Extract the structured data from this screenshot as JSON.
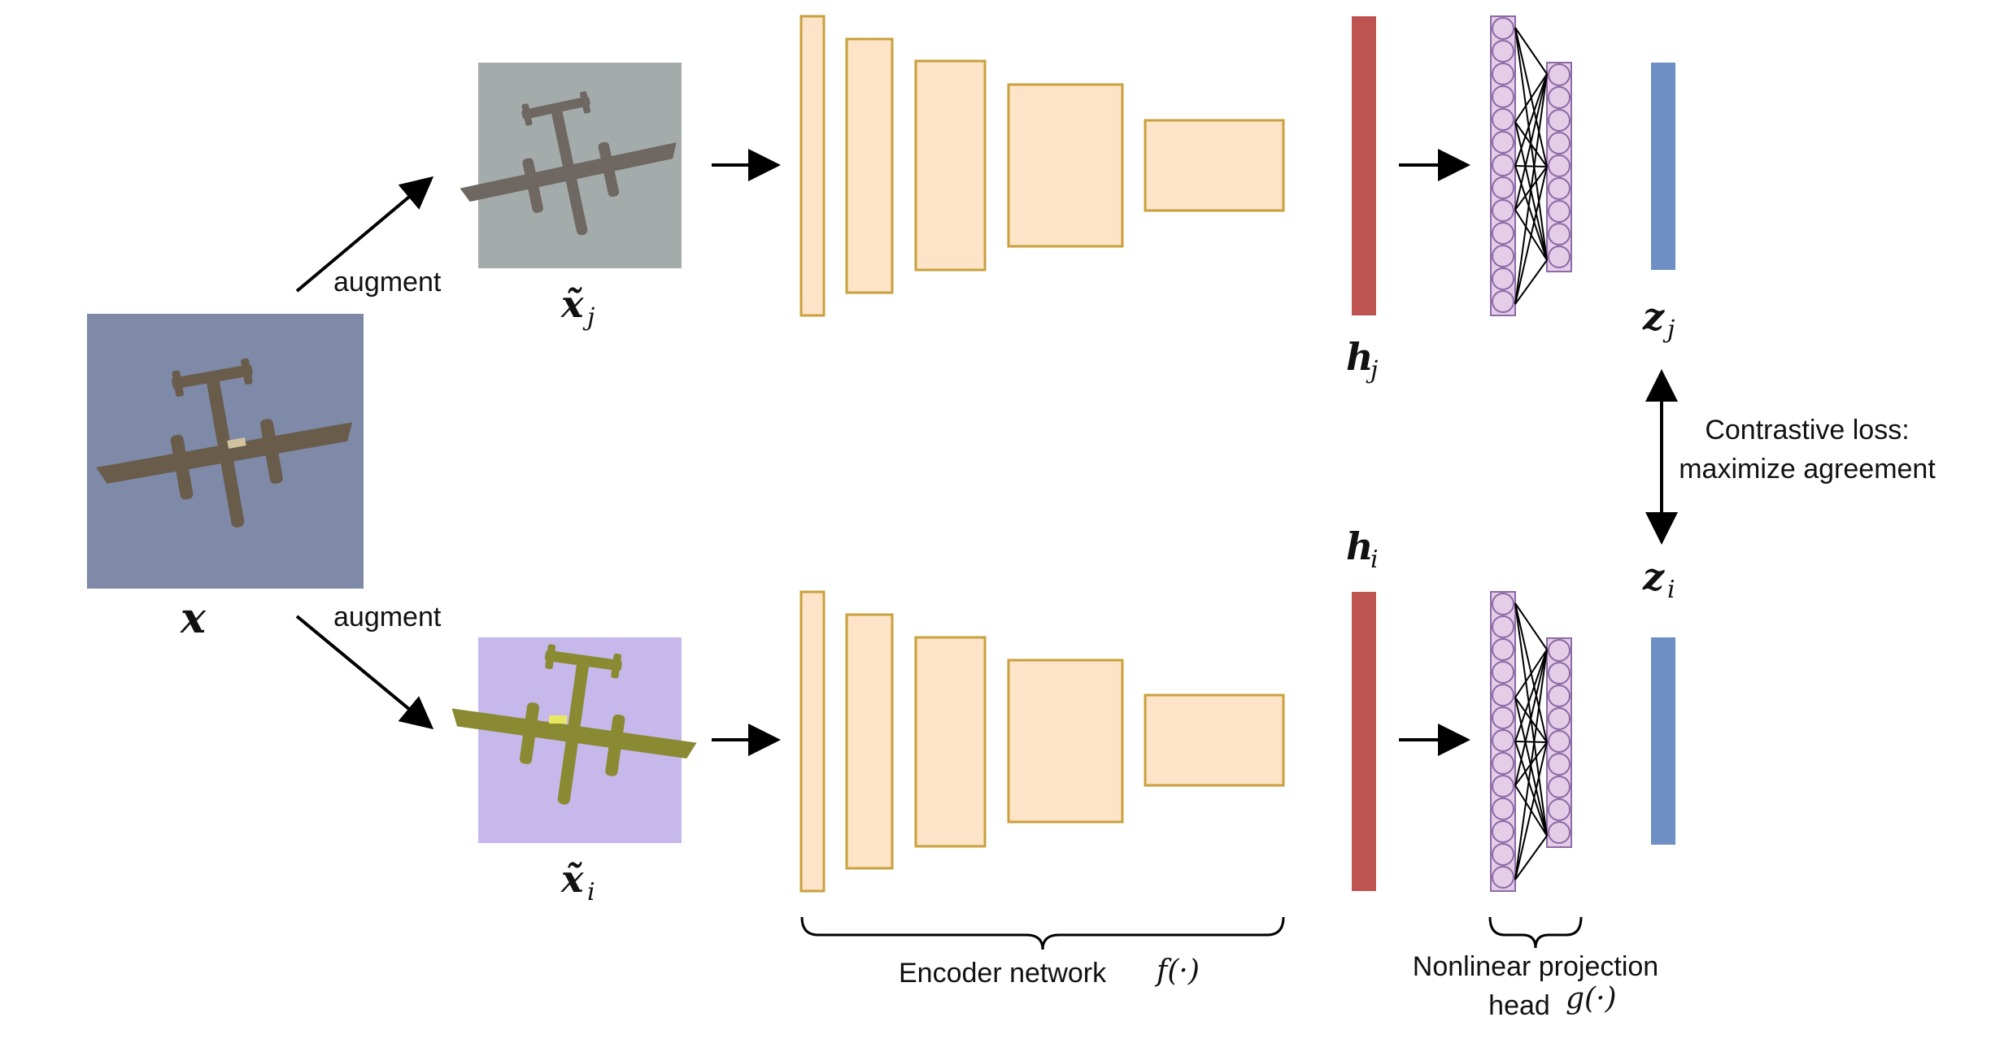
{
  "labels": {
    "augment_top": "augment",
    "augment_bottom": "augment",
    "x": "x",
    "x_tilde_j_base": "x̃",
    "x_tilde_j_sub": "j",
    "x_tilde_i_base": "x̃",
    "x_tilde_i_sub": "i",
    "h_j_base": "h",
    "h_j_sub": "j",
    "h_i_base": "h",
    "h_i_sub": "i",
    "z_j_base": "z",
    "z_j_sub": "j",
    "z_i_base": "z",
    "z_i_sub": "i",
    "contrastive_line1": "Contrastive loss:",
    "contrastive_line2": "maximize agreement",
    "encoder": "Encoder network",
    "encoder_fn": "f(·)",
    "projection_line1": "Nonlinear projection",
    "projection_line2": "head",
    "projection_fn": "g(·)"
  },
  "images": {
    "original": "airplane photo (gray-blue sky)",
    "augmented_j": "cropped grayscale airplane",
    "augmented_i": "color-distorted airplane (purple sky, yellow plane)"
  },
  "colors": {
    "encoder_fill": "#fde3c8",
    "encoder_stroke": "#c9a03c",
    "representation_bar": "#bd5452",
    "projection_fill": "#e5cde8",
    "projection_stroke": "#8c6aa5",
    "embedding_bar": "#6d8fc3",
    "sky_original": "#7e8aa8",
    "sky_j": "#a4acab",
    "sky_i": "#c7b8ec"
  }
}
